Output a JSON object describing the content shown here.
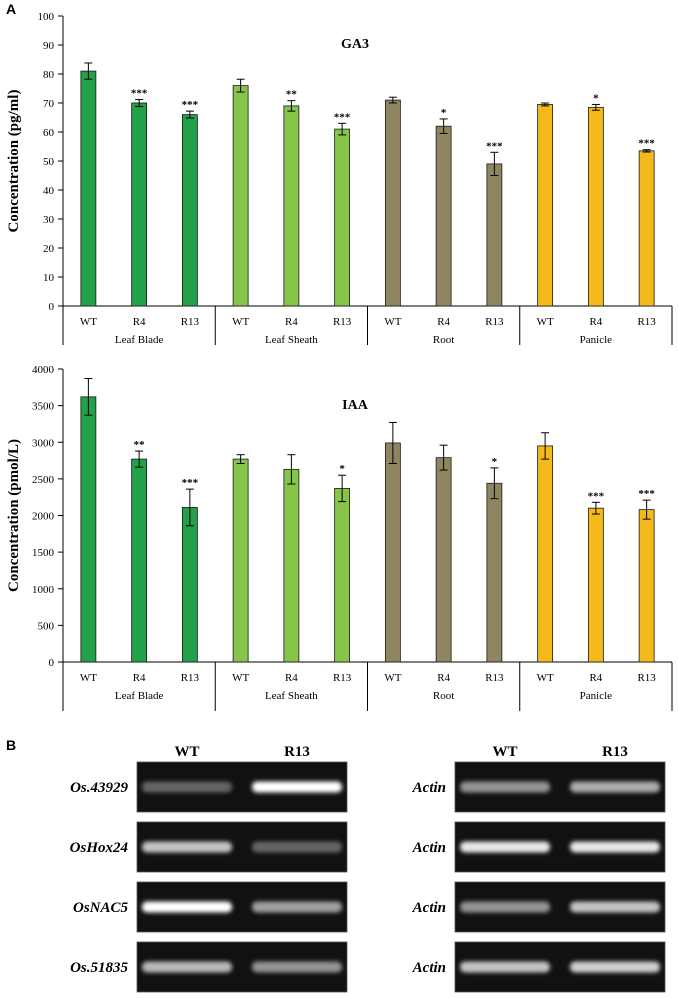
{
  "panel_labels": {
    "a": "A",
    "b": "B"
  },
  "colors": {
    "leaf_blade": "#22a04a",
    "leaf_sheath": "#86c44a",
    "root": "#8f8560",
    "panicle": "#f4b91b",
    "axis": "#000000",
    "gel_bg": "#111111"
  },
  "chart_data": [
    {
      "type": "bar",
      "title": "GA3",
      "ylabel": "Concentration (pg/ml)",
      "ylim": [
        0,
        100
      ],
      "yticks": [
        "0",
        "10",
        "20",
        "30",
        "40",
        "50",
        "60",
        "70",
        "80",
        "90",
        "100"
      ],
      "groups": [
        {
          "name": "Leaf Blade",
          "color_key": "leaf_blade",
          "bars": [
            {
              "label": "WT",
              "value": 81,
              "err": 2.8,
              "sig": ""
            },
            {
              "label": "R4",
              "value": 70,
              "err": 1.2,
              "sig": "***"
            },
            {
              "label": "R13",
              "value": 66,
              "err": 1.2,
              "sig": "***"
            }
          ]
        },
        {
          "name": "Leaf Sheath",
          "color_key": "leaf_sheath",
          "bars": [
            {
              "label": "WT",
              "value": 76,
              "err": 2.2,
              "sig": ""
            },
            {
              "label": "R4",
              "value": 69,
              "err": 1.8,
              "sig": "**"
            },
            {
              "label": "R13",
              "value": 61,
              "err": 2.0,
              "sig": "***"
            }
          ]
        },
        {
          "name": "Root",
          "color_key": "root",
          "bars": [
            {
              "label": "WT",
              "value": 71,
              "err": 1.0,
              "sig": ""
            },
            {
              "label": "R4",
              "value": 62,
              "err": 2.5,
              "sig": "*"
            },
            {
              "label": "R13",
              "value": 49,
              "err": 4.0,
              "sig": "***"
            }
          ]
        },
        {
          "name": "Panicle",
          "color_key": "panicle",
          "bars": [
            {
              "label": "WT",
              "value": 69.5,
              "err": 0.5,
              "sig": ""
            },
            {
              "label": "R4",
              "value": 68.5,
              "err": 1.0,
              "sig": "*"
            },
            {
              "label": "R13",
              "value": 53.5,
              "err": 0.4,
              "sig": "***"
            }
          ]
        }
      ]
    },
    {
      "type": "bar",
      "title": "IAA",
      "ylabel": "Concentration (pmol/L)",
      "ylim": [
        0,
        4000
      ],
      "yticks": [
        "0",
        "500",
        "1000",
        "1500",
        "2000",
        "2500",
        "3000",
        "3500",
        "4000"
      ],
      "groups": [
        {
          "name": "Leaf Blade",
          "color_key": "leaf_blade",
          "bars": [
            {
              "label": "WT",
              "value": 3620,
              "err": 250,
              "sig": ""
            },
            {
              "label": "R4",
              "value": 2770,
              "err": 110,
              "sig": "**"
            },
            {
              "label": "R13",
              "value": 2110,
              "err": 250,
              "sig": "***"
            }
          ]
        },
        {
          "name": "Leaf Sheath",
          "color_key": "leaf_sheath",
          "bars": [
            {
              "label": "WT",
              "value": 2770,
              "err": 60,
              "sig": ""
            },
            {
              "label": "R4",
              "value": 2630,
              "err": 200,
              "sig": ""
            },
            {
              "label": "R13",
              "value": 2370,
              "err": 180,
              "sig": "*"
            }
          ]
        },
        {
          "name": "Root",
          "color_key": "root",
          "bars": [
            {
              "label": "WT",
              "value": 2990,
              "err": 280,
              "sig": ""
            },
            {
              "label": "R4",
              "value": 2790,
              "err": 170,
              "sig": ""
            },
            {
              "label": "R13",
              "value": 2440,
              "err": 210,
              "sig": "*"
            }
          ]
        },
        {
          "name": "Panicle",
          "color_key": "panicle",
          "bars": [
            {
              "label": "WT",
              "value": 2950,
              "err": 180,
              "sig": ""
            },
            {
              "label": "R4",
              "value": 2100,
              "err": 80,
              "sig": "***"
            },
            {
              "label": "R13",
              "value": 2080,
              "err": 130,
              "sig": "***"
            }
          ]
        }
      ]
    }
  ],
  "gel": {
    "left_columns": [
      "WT",
      "R13"
    ],
    "right_columns": [
      "WT",
      "R13"
    ],
    "rows": [
      {
        "gene": "Os.43929",
        "control": "Actin",
        "gene_bands": [
          0.35,
          1.0
        ],
        "actin_bands": [
          0.55,
          0.65
        ]
      },
      {
        "gene": "OsHox24",
        "control": "Actin",
        "gene_bands": [
          0.75,
          0.35
        ],
        "actin_bands": [
          0.9,
          0.9
        ]
      },
      {
        "gene": "OsNAC5",
        "control": "Actin",
        "gene_bands": [
          1.0,
          0.6
        ],
        "actin_bands": [
          0.55,
          0.75
        ]
      },
      {
        "gene": "Os.51835",
        "control": "Actin",
        "gene_bands": [
          0.7,
          0.55
        ],
        "actin_bands": [
          0.75,
          0.8
        ]
      }
    ]
  }
}
